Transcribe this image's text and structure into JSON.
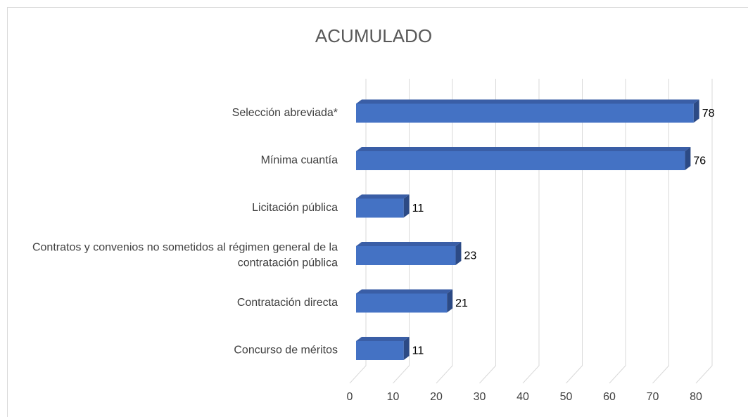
{
  "chart_data": {
    "type": "bar3d",
    "title": "ACUMULADO",
    "categories": [
      "Selección abreviada*",
      "Mínima cuantía",
      "Licitación pública",
      "Contratos y convenios no sometidos al régimen general de la contratación pública",
      "Contratación directa",
      "Concurso de méritos"
    ],
    "values": [
      78,
      76,
      11,
      23,
      21,
      11
    ],
    "color": "#4472c4",
    "xlim": [
      0,
      80
    ],
    "xticks": [
      0,
      10,
      20,
      30,
      40,
      50,
      60,
      70,
      80
    ],
    "grid": true
  }
}
